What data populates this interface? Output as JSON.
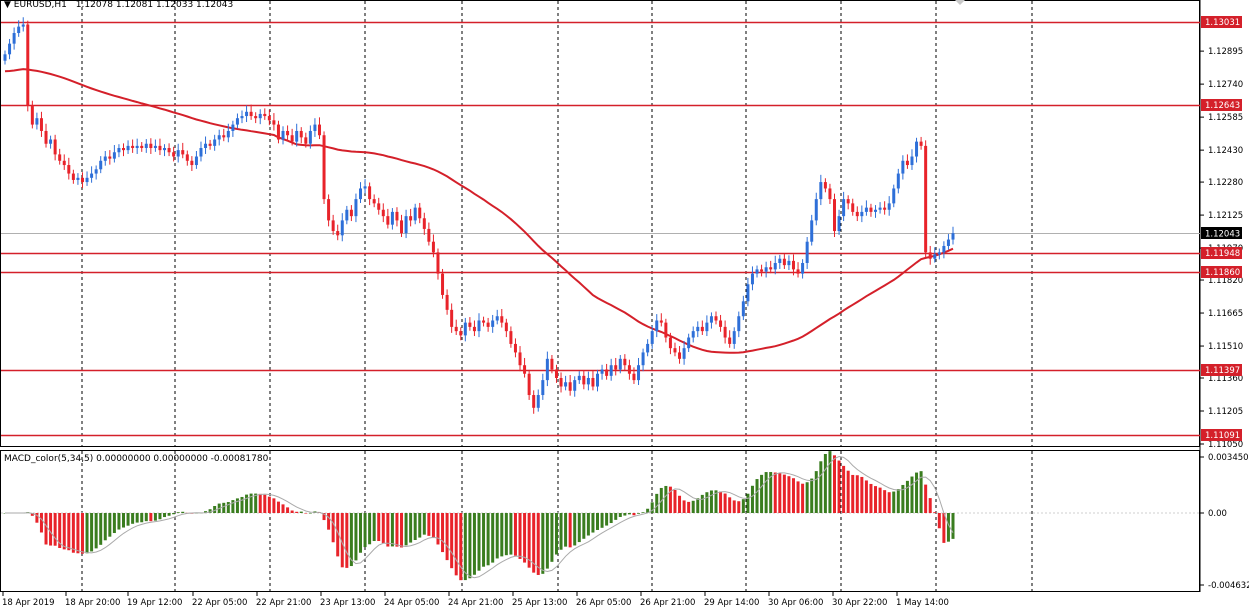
{
  "chart_header": {
    "symbol_label": "EURUSD,H1",
    "ohlc_label": "1.12078 1.12081 1.12033 1.12043"
  },
  "macd_header": {
    "label": "MACD_color(5,34,5) 0.00000000 0.00000000 -0.00081780"
  },
  "colors": {
    "bull": "#2e6fd8",
    "bear": "#e8232a",
    "level_line": "#d4202a",
    "ma_line": "#d4202a",
    "macd_up": "#3a7d1f",
    "macd_down": "#e8232a",
    "signal_line": "#aaaaaa",
    "grid": "#000000"
  },
  "price_axis": {
    "labels": [
      "1.12895",
      "1.12740",
      "1.12585",
      "1.12430",
      "1.12280",
      "1.12125",
      "1.11970",
      "1.11820",
      "1.11665",
      "1.11510",
      "1.11360",
      "1.11205",
      "1.11050"
    ]
  },
  "level_tags": [
    {
      "label": "1.13031",
      "value": 1.13031
    },
    {
      "label": "1.12643",
      "value": 1.12643
    },
    {
      "label": "1.11948",
      "value": 1.11948
    },
    {
      "label": "1.11860",
      "value": 1.1186
    },
    {
      "label": "1.11397",
      "value": 1.11397
    },
    {
      "label": "1.11091",
      "value": 1.11091
    }
  ],
  "current_price_tag": {
    "label": "1.12043",
    "value": 1.12043
  },
  "macd_axis": {
    "labels": [
      "0.0034506",
      "0.00",
      "-0.0046327"
    ]
  },
  "time_axis": {
    "labels": [
      "18 Apr 2019",
      "18 Apr 20:00",
      "19 Apr 12:00",
      "22 Apr 05:00",
      "22 Apr 21:00",
      "23 Apr 13:00",
      "24 Apr 05:00",
      "24 Apr 21:00",
      "25 Apr 13:00",
      "26 Apr 05:00",
      "26 Apr 21:00",
      "29 Apr 14:00",
      "30 Apr 06:00",
      "30 Apr 22:00",
      "1 May 14:00"
    ]
  },
  "chart_data": {
    "type": "candlestick",
    "symbol": "EURUSD",
    "timeframe": "H1",
    "ylim": [
      1.1105,
      1.1305
    ],
    "candles_close": [
      1.1288,
      1.1293,
      1.1298,
      1.1301,
      1.1302,
      1.1264,
      1.1255,
      1.1258,
      1.1252,
      1.1246,
      1.1248,
      1.1241,
      1.1238,
      1.1236,
      1.1232,
      1.1229,
      1.123,
      1.1228,
      1.123,
      1.1232,
      1.1234,
      1.1238,
      1.124,
      1.1239,
      1.1242,
      1.1244,
      1.1243,
      1.1245,
      1.1244,
      1.1245,
      1.1244,
      1.1246,
      1.1244,
      1.1245,
      1.1243,
      1.1244,
      1.1242,
      1.124,
      1.1243,
      1.1241,
      1.1238,
      1.1236,
      1.124,
      1.1244,
      1.1246,
      1.1245,
      1.1248,
      1.125,
      1.1249,
      1.1252,
      1.1255,
      1.1258,
      1.1259,
      1.1261,
      1.1259,
      1.1258,
      1.126,
      1.1259,
      1.1257,
      1.1255,
      1.1248,
      1.1252,
      1.125,
      1.1247,
      1.1252,
      1.1249,
      1.1246,
      1.1252,
      1.1255,
      1.125,
      1.122,
      1.121,
      1.1205,
      1.1203,
      1.121,
      1.1215,
      1.1212,
      1.122,
      1.1225,
      1.1226,
      1.122,
      1.1218,
      1.1215,
      1.1212,
      1.1208,
      1.1214,
      1.121,
      1.1204,
      1.1212,
      1.121,
      1.1216,
      1.1211,
      1.1206,
      1.12,
      1.1195,
      1.1185,
      1.1175,
      1.1168,
      1.116,
      1.1158,
      1.1156,
      1.1162,
      1.116,
      1.1158,
      1.1163,
      1.1162,
      1.116,
      1.1163,
      1.1165,
      1.1162,
      1.1158,
      1.1152,
      1.1148,
      1.1142,
      1.1138,
      1.1128,
      1.1122,
      1.1128,
      1.1135,
      1.1145,
      1.114,
      1.1136,
      1.1132,
      1.1134,
      1.113,
      1.1135,
      1.1137,
      1.1133,
      1.1136,
      1.1132,
      1.1138,
      1.114,
      1.1137,
      1.1142,
      1.114,
      1.1145,
      1.1142,
      1.1138,
      1.1135,
      1.1142,
      1.1148,
      1.1152,
      1.1158,
      1.1163,
      1.1162,
      1.1155,
      1.115,
      1.1148,
      1.1145,
      1.115,
      1.1155,
      1.1158,
      1.116,
      1.1158,
      1.1162,
      1.1165,
      1.1163,
      1.116,
      1.1155,
      1.1152,
      1.1158,
      1.1165,
      1.1172,
      1.118,
      1.1185,
      1.1187,
      1.1186,
      1.1188,
      1.1187,
      1.119,
      1.1192,
      1.1189,
      1.1191,
      1.1187,
      1.1185,
      1.119,
      1.12,
      1.121,
      1.122,
      1.1228,
      1.1225,
      1.122,
      1.1205,
      1.1212,
      1.122,
      1.1218,
      1.1214,
      1.1212,
      1.1214,
      1.1216,
      1.1214,
      1.1215,
      1.1216,
      1.1215,
      1.1218,
      1.1225,
      1.1232,
      1.1238,
      1.1236,
      1.124,
      1.1247,
      1.1245,
      1.1195,
      1.1192,
      1.1194,
      1.1195,
      1.1198,
      1.1201,
      1.1204
    ]
  }
}
